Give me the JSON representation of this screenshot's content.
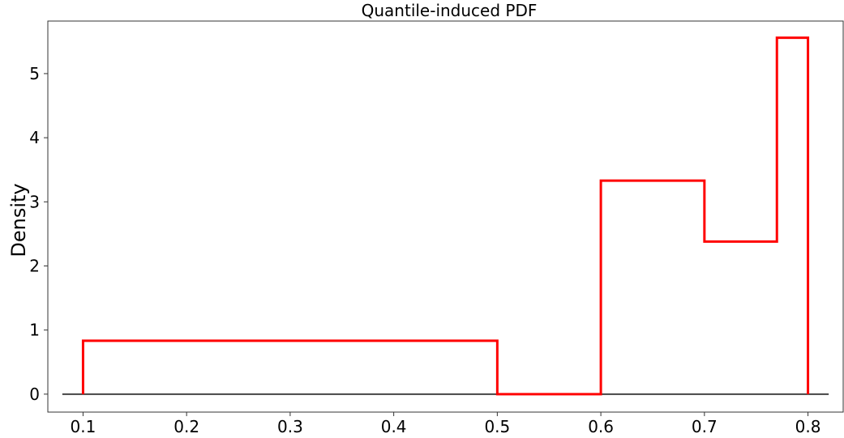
{
  "chart_data": {
    "type": "line",
    "title": "Quantile-induced PDF",
    "xlabel": "",
    "ylabel": "Density",
    "xlim": [
      0.066,
      0.834
    ],
    "ylim": [
      -0.28,
      5.82
    ],
    "x_ticks": [
      0.1,
      0.2,
      0.3,
      0.4,
      0.5,
      0.6,
      0.7,
      0.8
    ],
    "x_tick_labels": [
      "0.1",
      "0.2",
      "0.3",
      "0.4",
      "0.5",
      "0.6",
      "0.7",
      "0.8"
    ],
    "y_ticks": [
      0,
      1,
      2,
      3,
      4,
      5
    ],
    "y_tick_labels": [
      "0",
      "1",
      "2",
      "3",
      "4",
      "5"
    ],
    "grid": false,
    "series": [
      {
        "color": "#ff0000",
        "style": "step",
        "x": [
          0.1,
          0.1,
          0.5,
          0.5,
          0.6,
          0.6,
          0.7,
          0.7,
          0.77,
          0.77,
          0.8,
          0.8
        ],
        "y": [
          0,
          0.833,
          0.833,
          0,
          0,
          3.33,
          3.33,
          2.38,
          2.38,
          5.56,
          5.56,
          0
        ]
      }
    ],
    "baseline": {
      "color": "#444444",
      "x": [
        0.08,
        0.82
      ],
      "y": [
        0,
        0
      ]
    }
  }
}
